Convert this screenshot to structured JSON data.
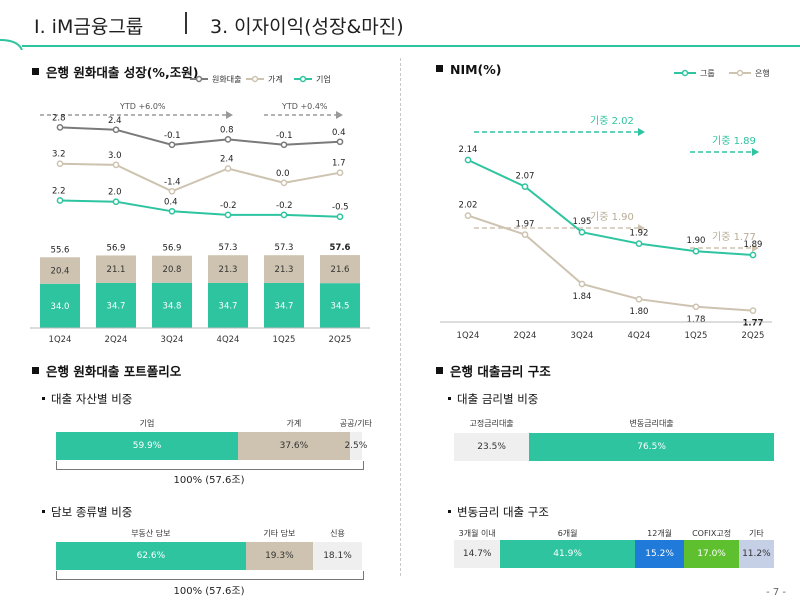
{
  "header": {
    "title": "Ⅰ. iM금융그룹",
    "subtitle": "3. 이자이익(성장&마진)"
  },
  "colors": {
    "teal": "#2ec4a0",
    "teal_dark": "#20b08f",
    "beige": "#cdc3b0",
    "gray_line": "#7a7a7a",
    "light_gray": "#efefef",
    "blue": "#1f7ad9",
    "green": "#5ec02f",
    "lavender": "#c5cfe6"
  },
  "loan_growth": {
    "title": "은행 원화대출 성장(%,조원)",
    "ytd_left": "YTD +6.0%",
    "ytd_right": "YTD +0.4%",
    "legend": [
      "원화대출",
      "가계",
      "기업"
    ],
    "chart_data": {
      "type": "bar",
      "categories": [
        "1Q24",
        "2Q24",
        "3Q24",
        "4Q24",
        "1Q25",
        "2Q25"
      ],
      "series": [
        {
          "name": "기업",
          "values": [
            34.0,
            34.7,
            34.8,
            34.7,
            34.7,
            34.5
          ],
          "labels": [
            "34.0",
            "34.7",
            "34.8",
            "34.7",
            "34.7",
            "34.5"
          ]
        },
        {
          "name": "가계",
          "values": [
            20.4,
            21.1,
            20.8,
            21.3,
            21.3,
            21.6
          ],
          "labels": [
            "20.4",
            "21.1",
            "20.8",
            "21.3",
            "21.3",
            "21.6"
          ]
        }
      ],
      "totals": [
        "55.6",
        "56.9",
        "56.9",
        "57.3",
        "57.3",
        "57.6"
      ],
      "growth_lines": [
        {
          "name": "원화대출",
          "values": [
            2.8,
            2.4,
            -0.1,
            0.8,
            -0.1,
            0.4
          ],
          "labels": [
            "2.8",
            "2.4",
            "-0.1",
            "0.8",
            "-0.1",
            "0.4"
          ]
        },
        {
          "name": "가계",
          "values": [
            3.2,
            3.0,
            -1.4,
            2.4,
            0.0,
            1.7
          ],
          "labels": [
            "3.2",
            "3.0",
            "-1.4",
            "2.4",
            "0.0",
            "1.7"
          ]
        },
        {
          "name": "기업",
          "values": [
            2.2,
            2.0,
            0.4,
            -0.2,
            -0.2,
            -0.5
          ],
          "labels": [
            "2.2",
            "2.0",
            "0.4",
            "-0.2",
            "-0.2",
            "-0.5"
          ]
        }
      ]
    }
  },
  "nim": {
    "title": "NIM(%)",
    "legend": [
      "그룹",
      "은행"
    ],
    "annotations": {
      "group_2024": "기중 2.02",
      "group_2025": "기중 1.89",
      "bank_2024": "기중 1.90",
      "bank_2025": "기중 1.77"
    },
    "chart_data": {
      "type": "line",
      "categories": [
        "1Q24",
        "2Q24",
        "3Q24",
        "4Q24",
        "1Q25",
        "2Q25"
      ],
      "series": [
        {
          "name": "그룹",
          "values": [
            2.14,
            2.07,
            1.95,
            1.92,
            1.9,
            1.89
          ],
          "labels": [
            "2.14",
            "2.07",
            "1.95",
            "1.92",
            "1.90",
            "1.89"
          ]
        },
        {
          "name": "은행",
          "values": [
            2.02,
            1.97,
            1.84,
            1.8,
            1.78,
            1.77
          ],
          "labels": [
            "2.02",
            "1.97",
            "1.84",
            "1.80",
            "1.78",
            "1.77"
          ]
        }
      ]
    }
  },
  "portfolio": {
    "title": "은행 원화대출 포트폴리오",
    "asset": {
      "subtitle": "대출 자산별 비중",
      "total": "100% (57.6조)",
      "segments": [
        {
          "label": "기업",
          "value": 59.9,
          "text": "59.9%"
        },
        {
          "label": "가계",
          "value": 37.6,
          "text": "37.6%"
        },
        {
          "label": "공공/기타",
          "value": 2.5,
          "text": "2.5%"
        }
      ]
    },
    "collateral": {
      "subtitle": "담보 종류별 비중",
      "total": "100% (57.6조)",
      "segments": [
        {
          "label": "부동산 담보",
          "value": 62.6,
          "text": "62.6%"
        },
        {
          "label": "기타 담보",
          "value": 19.3,
          "text": "19.3%"
        },
        {
          "label": "신용",
          "value": 18.1,
          "text": "18.1%"
        }
      ]
    }
  },
  "rate_structure": {
    "title": "은행 대출금리 구조",
    "by_rate": {
      "subtitle": "대출 금리별 비중",
      "segments": [
        {
          "label": "고정금리대출",
          "value": 23.5,
          "text": "23.5%"
        },
        {
          "label": "변동금리대출",
          "value": 76.5,
          "text": "76.5%"
        }
      ]
    },
    "floating": {
      "subtitle": "변동금리 대출 구조",
      "segments": [
        {
          "label": "3개월 이내",
          "value": 14.7,
          "text": "14.7%"
        },
        {
          "label": "6개월",
          "value": 41.9,
          "text": "41.9%"
        },
        {
          "label": "12개월",
          "value": 15.2,
          "text": "15.2%"
        },
        {
          "label": "COFIX고정",
          "value": 17.0,
          "text": "17.0%"
        },
        {
          "label": "기타",
          "value": 11.2,
          "text": "11.2%"
        }
      ]
    }
  },
  "page_number": "- 7 -"
}
